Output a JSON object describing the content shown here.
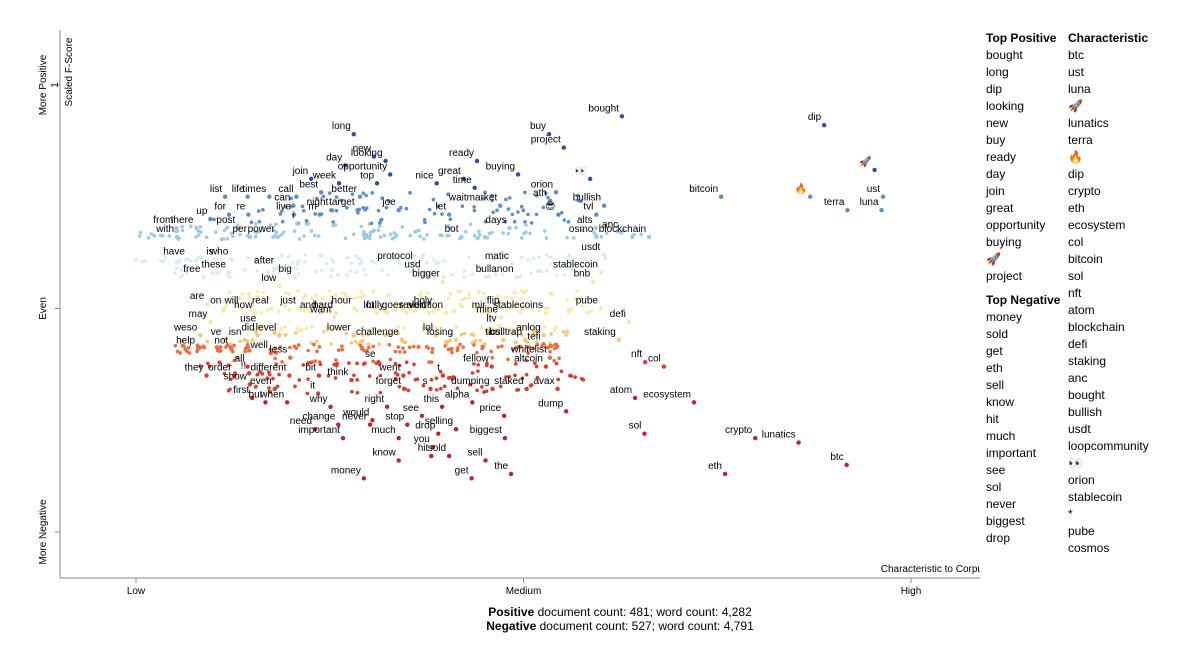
{
  "chart_data": {
    "type": "scatter",
    "xlabel": "Characteristic to Corpus",
    "ylabel": "Scaled F-Score",
    "x_ticks": [
      "Low",
      "Medium",
      "High"
    ],
    "y_ticks": [
      "More Negative",
      "Even",
      "More Positive"
    ],
    "y_tick_top": "1",
    "xlim": [
      0,
      1
    ],
    "ylim": [
      0,
      1
    ],
    "labeled_points": [
      {
        "term": "bought",
        "x": 0.627,
        "y": 0.93
      },
      {
        "term": "dip",
        "x": 0.888,
        "y": 0.91
      },
      {
        "term": "long",
        "x": 0.281,
        "y": 0.89
      },
      {
        "term": "buy",
        "x": 0.533,
        "y": 0.89
      },
      {
        "term": "project",
        "x": 0.552,
        "y": 0.86
      },
      {
        "term": "new",
        "x": 0.307,
        "y": 0.84
      },
      {
        "term": "looking",
        "x": 0.322,
        "y": 0.83
      },
      {
        "term": "day",
        "x": 0.27,
        "y": 0.82
      },
      {
        "term": "ready",
        "x": 0.44,
        "y": 0.83
      },
      {
        "term": "🚀",
        "x": 0.953,
        "y": 0.81
      },
      {
        "term": "join",
        "x": 0.226,
        "y": 0.79
      },
      {
        "term": "opportunity",
        "x": 0.328,
        "y": 0.8
      },
      {
        "term": "buying",
        "x": 0.493,
        "y": 0.8
      },
      {
        "term": "great",
        "x": 0.423,
        "y": 0.79
      },
      {
        "term": "👀",
        "x": 0.586,
        "y": 0.79
      },
      {
        "term": "top",
        "x": 0.311,
        "y": 0.78
      },
      {
        "term": "nice",
        "x": 0.388,
        "y": 0.78
      },
      {
        "term": "week",
        "x": 0.262,
        "y": 0.78
      },
      {
        "term": "time",
        "x": 0.437,
        "y": 0.77
      },
      {
        "term": "best",
        "x": 0.239,
        "y": 0.76
      },
      {
        "term": "orion",
        "x": 0.542,
        "y": 0.76
      },
      {
        "term": "ust",
        "x": 0.964,
        "y": 0.75
      },
      {
        "term": "bitcoin",
        "x": 0.755,
        "y": 0.75
      },
      {
        "term": "🔥",
        "x": 0.87,
        "y": 0.75
      },
      {
        "term": "call",
        "x": 0.207,
        "y": 0.75
      },
      {
        "term": "list",
        "x": 0.115,
        "y": 0.75
      },
      {
        "term": "life",
        "x": 0.144,
        "y": 0.75
      },
      {
        "term": "times",
        "x": 0.172,
        "y": 0.75
      },
      {
        "term": "better",
        "x": 0.289,
        "y": 0.75
      },
      {
        "term": "ath",
        "x": 0.534,
        "y": 0.74
      },
      {
        "term": "bullish",
        "x": 0.604,
        "y": 0.73
      },
      {
        "term": "can",
        "x": 0.203,
        "y": 0.73
      },
      {
        "term": "target",
        "x": 0.286,
        "y": 0.72
      },
      {
        "term": "joe",
        "x": 0.339,
        "y": 0.72
      },
      {
        "term": "waitmarket",
        "x": 0.47,
        "y": 0.73
      },
      {
        "term": "terra",
        "x": 0.918,
        "y": 0.72
      },
      {
        "term": "luna",
        "x": 0.962,
        "y": 0.72
      },
      {
        "term": "night",
        "x": 0.252,
        "y": 0.72
      },
      {
        "term": "m",
        "x": 0.237,
        "y": 0.71
      },
      {
        "term": "live",
        "x": 0.204,
        "y": 0.71
      },
      {
        "term": "for",
        "x": 0.12,
        "y": 0.71
      },
      {
        "term": "re",
        "x": 0.145,
        "y": 0.71
      },
      {
        "term": "let",
        "x": 0.404,
        "y": 0.71
      },
      {
        "term": "tvl",
        "x": 0.594,
        "y": 0.71
      },
      {
        "term": "😎",
        "x": 0.545,
        "y": 0.71
      },
      {
        "term": "up",
        "x": 0.096,
        "y": 0.7
      },
      {
        "term": "i",
        "x": 0.208,
        "y": 0.69
      },
      {
        "term": "post",
        "x": 0.132,
        "y": 0.68
      },
      {
        "term": "from",
        "x": 0.052,
        "y": 0.68
      },
      {
        "term": "there",
        "x": 0.078,
        "y": 0.68
      },
      {
        "term": "days",
        "x": 0.482,
        "y": 0.68
      },
      {
        "term": "alts",
        "x": 0.593,
        "y": 0.68
      },
      {
        "term": "anc",
        "x": 0.626,
        "y": 0.67
      },
      {
        "term": "with",
        "x": 0.053,
        "y": 0.66
      },
      {
        "term": "osmo",
        "x": 0.594,
        "y": 0.66
      },
      {
        "term": "blockchain",
        "x": 0.662,
        "y": 0.66
      },
      {
        "term": "per",
        "x": 0.147,
        "y": 0.66
      },
      {
        "term": "power",
        "x": 0.183,
        "y": 0.66
      },
      {
        "term": "bot",
        "x": 0.42,
        "y": 0.66
      },
      {
        "term": "usdt",
        "x": 0.603,
        "y": 0.62
      },
      {
        "term": "have",
        "x": 0.067,
        "y": 0.61
      },
      {
        "term": "is",
        "x": 0.104,
        "y": 0.61
      },
      {
        "term": "who",
        "x": 0.123,
        "y": 0.61
      },
      {
        "term": "protocol",
        "x": 0.361,
        "y": 0.6
      },
      {
        "term": "matic",
        "x": 0.485,
        "y": 0.6
      },
      {
        "term": "after",
        "x": 0.182,
        "y": 0.59
      },
      {
        "term": "usd",
        "x": 0.371,
        "y": 0.58
      },
      {
        "term": "these",
        "x": 0.12,
        "y": 0.58
      },
      {
        "term": "free",
        "x": 0.087,
        "y": 0.57
      },
      {
        "term": "stablecoin",
        "x": 0.6,
        "y": 0.58
      },
      {
        "term": "big",
        "x": 0.205,
        "y": 0.57
      },
      {
        "term": "bullanon",
        "x": 0.491,
        "y": 0.57
      },
      {
        "term": "bigger",
        "x": 0.396,
        "y": 0.56
      },
      {
        "term": "bnb",
        "x": 0.59,
        "y": 0.56
      },
      {
        "term": "low",
        "x": 0.185,
        "y": 0.55
      },
      {
        "term": "are",
        "x": 0.092,
        "y": 0.51
      },
      {
        "term": "on",
        "x": 0.114,
        "y": 0.5
      },
      {
        "term": "will",
        "x": 0.136,
        "y": 0.5
      },
      {
        "term": "real",
        "x": 0.175,
        "y": 0.5
      },
      {
        "term": "just",
        "x": 0.21,
        "y": 0.5
      },
      {
        "term": "hour",
        "x": 0.282,
        "y": 0.5
      },
      {
        "term": "holy",
        "x": 0.386,
        "y": 0.5
      },
      {
        "term": "flip",
        "x": 0.473,
        "y": 0.5
      },
      {
        "term": "pube",
        "x": 0.6,
        "y": 0.5
      },
      {
        "term": "hard",
        "x": 0.258,
        "y": 0.49
      },
      {
        "term": "how",
        "x": 0.154,
        "y": 0.49
      },
      {
        "term": "and",
        "x": 0.237,
        "y": 0.49
      },
      {
        "term": "lot",
        "x": 0.311,
        "y": 0.49
      },
      {
        "term": "fully",
        "x": 0.324,
        "y": 0.49
      },
      {
        "term": "goes",
        "x": 0.349,
        "y": 0.49
      },
      {
        "term": "alert",
        "x": 0.378,
        "y": 0.49
      },
      {
        "term": "revolution",
        "x": 0.4,
        "y": 0.49
      },
      {
        "term": "mir",
        "x": 0.455,
        "y": 0.49
      },
      {
        "term": "stablecoins",
        "x": 0.529,
        "y": 0.49
      },
      {
        "term": "want",
        "x": 0.256,
        "y": 0.48
      },
      {
        "term": "mine",
        "x": 0.471,
        "y": 0.48
      },
      {
        "term": "defi",
        "x": 0.636,
        "y": 0.47
      },
      {
        "term": "may",
        "x": 0.096,
        "y": 0.47
      },
      {
        "term": "use",
        "x": 0.159,
        "y": 0.46
      },
      {
        "term": "ltv",
        "x": 0.469,
        "y": 0.46
      },
      {
        "term": "weso",
        "x": 0.083,
        "y": 0.44
      },
      {
        "term": "did",
        "x": 0.157,
        "y": 0.44
      },
      {
        "term": "level",
        "x": 0.185,
        "y": 0.44
      },
      {
        "term": "lower",
        "x": 0.281,
        "y": 0.44
      },
      {
        "term": "lol",
        "x": 0.387,
        "y": 0.44
      },
      {
        "term": "anlog",
        "x": 0.526,
        "y": 0.44
      },
      {
        "term": "staking",
        "x": 0.623,
        "y": 0.43
      },
      {
        "term": "ve",
        "x": 0.114,
        "y": 0.43
      },
      {
        "term": "isn",
        "x": 0.14,
        "y": 0.43
      },
      {
        "term": "challenge",
        "x": 0.343,
        "y": 0.43
      },
      {
        "term": "losing",
        "x": 0.413,
        "y": 0.43
      },
      {
        "term": "tics",
        "x": 0.474,
        "y": 0.43
      },
      {
        "term": "bulltrap",
        "x": 0.502,
        "y": 0.43
      },
      {
        "term": "tefi",
        "x": 0.526,
        "y": 0.42
      },
      {
        "term": "help",
        "x": 0.08,
        "y": 0.41
      },
      {
        "term": "not",
        "x": 0.123,
        "y": 0.41
      },
      {
        "term": "well",
        "x": 0.174,
        "y": 0.4
      },
      {
        "term": "less",
        "x": 0.199,
        "y": 0.39
      },
      {
        "term": "whitelist",
        "x": 0.534,
        "y": 0.39
      },
      {
        "term": "nft",
        "x": 0.657,
        "y": 0.38
      },
      {
        "term": "se",
        "x": 0.313,
        "y": 0.38
      },
      {
        "term": "col",
        "x": 0.681,
        "y": 0.37
      },
      {
        "term": "all",
        "x": 0.144,
        "y": 0.37
      },
      {
        "term": "fellow",
        "x": 0.459,
        "y": 0.37
      },
      {
        "term": "altcoin",
        "x": 0.529,
        "y": 0.37
      },
      {
        "term": "they",
        "x": 0.091,
        "y": 0.35
      },
      {
        "term": "order",
        "x": 0.127,
        "y": 0.35
      },
      {
        "term": "!!",
        "x": 0.146,
        "y": 0.355
      },
      {
        "term": "different",
        "x": 0.198,
        "y": 0.35
      },
      {
        "term": "bit",
        "x": 0.236,
        "y": 0.35
      },
      {
        "term": "went",
        "x": 0.345,
        "y": 0.35
      },
      {
        "term": "t",
        "x": 0.396,
        "y": 0.35
      },
      {
        "term": "think",
        "x": 0.278,
        "y": 0.34
      },
      {
        "term": "show",
        "x": 0.147,
        "y": 0.33
      },
      {
        "term": "even",
        "x": 0.179,
        "y": 0.32
      },
      {
        "term": "it",
        "x": 0.235,
        "y": 0.31
      },
      {
        "term": "forget",
        "x": 0.346,
        "y": 0.32
      },
      {
        "term": "s",
        "x": 0.38,
        "y": 0.32
      },
      {
        "term": "dumping",
        "x": 0.46,
        "y": 0.32
      },
      {
        "term": "staked",
        "x": 0.504,
        "y": 0.32
      },
      {
        "term": "avax",
        "x": 0.544,
        "y": 0.32
      },
      {
        "term": "atom",
        "x": 0.644,
        "y": 0.3
      },
      {
        "term": "first",
        "x": 0.15,
        "y": 0.3
      },
      {
        "term": "but",
        "x": 0.167,
        "y": 0.29
      },
      {
        "term": "when",
        "x": 0.195,
        "y": 0.29
      },
      {
        "term": "why",
        "x": 0.251,
        "y": 0.28
      },
      {
        "term": "right",
        "x": 0.324,
        "y": 0.28
      },
      {
        "term": "this",
        "x": 0.395,
        "y": 0.28
      },
      {
        "term": "alpha",
        "x": 0.434,
        "y": 0.29
      },
      {
        "term": "ecosystem",
        "x": 0.72,
        "y": 0.29
      },
      {
        "term": "dump",
        "x": 0.555,
        "y": 0.27
      },
      {
        "term": "price",
        "x": 0.475,
        "y": 0.26
      },
      {
        "term": "see",
        "x": 0.369,
        "y": 0.26
      },
      {
        "term": "would",
        "x": 0.305,
        "y": 0.25
      },
      {
        "term": "change",
        "x": 0.261,
        "y": 0.24
      },
      {
        "term": "stop",
        "x": 0.35,
        "y": 0.24
      },
      {
        "term": "never",
        "x": 0.302,
        "y": 0.24
      },
      {
        "term": "need",
        "x": 0.231,
        "y": 0.23
      },
      {
        "term": "selling",
        "x": 0.413,
        "y": 0.23
      },
      {
        "term": "drop",
        "x": 0.39,
        "y": 0.22
      },
      {
        "term": "sol",
        "x": 0.656,
        "y": 0.22
      },
      {
        "term": "important",
        "x": 0.267,
        "y": 0.21
      },
      {
        "term": "much",
        "x": 0.339,
        "y": 0.21
      },
      {
        "term": "biggest",
        "x": 0.476,
        "y": 0.21
      },
      {
        "term": "crypto",
        "x": 0.799,
        "y": 0.21
      },
      {
        "term": "lunatics",
        "x": 0.855,
        "y": 0.2
      },
      {
        "term": "you",
        "x": 0.383,
        "y": 0.19
      },
      {
        "term": "sold",
        "x": 0.404,
        "y": 0.17
      },
      {
        "term": "hit",
        "x": 0.381,
        "y": 0.17
      },
      {
        "term": "know",
        "x": 0.339,
        "y": 0.16
      },
      {
        "term": "sell",
        "x": 0.451,
        "y": 0.16
      },
      {
        "term": "btc",
        "x": 0.917,
        "y": 0.15
      },
      {
        "term": "money",
        "x": 0.294,
        "y": 0.12
      },
      {
        "term": "the",
        "x": 0.484,
        "y": 0.13
      },
      {
        "term": "eth",
        "x": 0.76,
        "y": 0.13
      },
      {
        "term": "get",
        "x": 0.433,
        "y": 0.12
      }
    ]
  },
  "sidebar": {
    "top_positive_header": "Top Positive",
    "top_positive": [
      "bought",
      "long",
      "dip",
      "looking",
      "new",
      "buy",
      "ready",
      "day",
      "join",
      "great",
      "opportunity",
      "buying",
      "🚀",
      "project"
    ],
    "top_negative_header": "Top Negative",
    "top_negative": [
      "money",
      "sold",
      "get",
      "eth",
      "sell",
      "know",
      "hit",
      "much",
      "important",
      "see",
      "sol",
      "never",
      "biggest",
      "drop"
    ],
    "characteristic_header": "Characteristic",
    "characteristic": [
      "btc",
      "ust",
      "luna",
      "🚀",
      "lunatics",
      "terra",
      "🔥",
      "dip",
      "crypto",
      "eth",
      "ecosystem",
      "col",
      "bitcoin",
      "sol",
      "nft",
      "atom",
      "blockchain",
      "defi",
      "staking",
      "anc",
      "bought",
      "bullish",
      "usdt",
      "loopcommunity",
      "👀",
      "orion",
      "stablecoin",
      "*",
      "pube",
      "cosmos"
    ]
  },
  "footer": {
    "positive_label": "Positive",
    "positive_text": " document count: 481; word count: 4,282",
    "negative_label": "Negative",
    "negative_text": " document count: 527; word count: 4,791"
  },
  "colors": {
    "pos_strong": "#2c4e9e",
    "pos_mid": "#5b8fc9",
    "pos_light": "#9ccbe2",
    "neutral": "#f6eaa6",
    "neg_light": "#fbc46e",
    "neg_mid": "#ef6c3c",
    "neg_strong": "#c51f2a"
  }
}
